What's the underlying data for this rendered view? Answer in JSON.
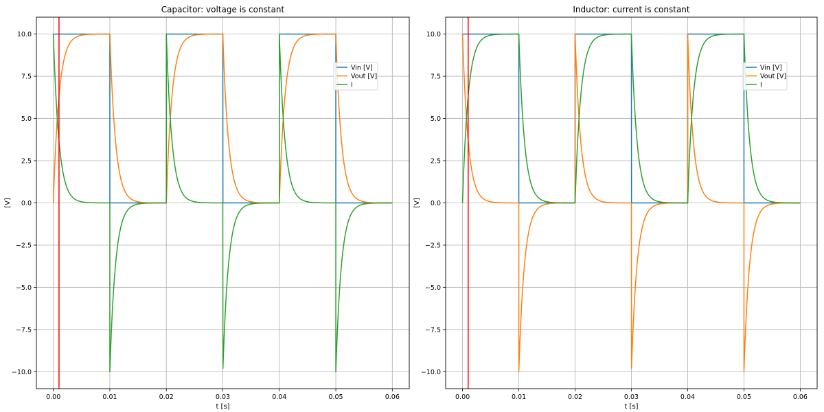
{
  "chart_data": [
    {
      "type": "line",
      "title": "Capacitor: voltage is constant",
      "xlabel": "t [s]",
      "ylabel": "[V]",
      "xlim": [
        -0.003,
        0.063
      ],
      "ylim": [
        -11,
        11
      ],
      "xticks": [
        "0.00",
        "0.01",
        "0.02",
        "0.03",
        "0.04",
        "0.05",
        "0.06"
      ],
      "yticks": [
        "10.0",
        "7.5",
        "5.0",
        "2.5",
        "0.0",
        "−2.5",
        "−5.0",
        "−7.5",
        "−10.0"
      ],
      "grid": true,
      "legend_position": "upper-right",
      "vline_t": 0.001,
      "signal": {
        "t_start": 0,
        "t_end": 0.06,
        "period": 0.02,
        "on_duration": 0.01,
        "amplitude": 10,
        "time_constant": 0.001,
        "num_pulses": 3
      },
      "series": [
        {
          "name": "Vin [V]",
          "kind": "vin",
          "color": "#1f77b4"
        },
        {
          "name": "Vout [V]",
          "kind": "vc",
          "color": "#ff7f0e"
        },
        {
          "name": "I",
          "kind": "vr",
          "color": "#2ca02c"
        }
      ]
    },
    {
      "type": "line",
      "title": "Inductor: current is constant",
      "xlabel": "t [s]",
      "ylabel": "[V]",
      "xlim": [
        -0.003,
        0.063
      ],
      "ylim": [
        -11,
        11
      ],
      "xticks": [
        "0.00",
        "0.01",
        "0.02",
        "0.03",
        "0.04",
        "0.05",
        "0.06"
      ],
      "yticks": [
        "10.0",
        "7.5",
        "5.0",
        "2.5",
        "0.0",
        "−2.5",
        "−5.0",
        "−7.5",
        "−10.0"
      ],
      "grid": true,
      "legend_position": "upper-right",
      "vline_t": 0.001,
      "signal": {
        "t_start": 0,
        "t_end": 0.06,
        "period": 0.02,
        "on_duration": 0.01,
        "amplitude": 10,
        "time_constant": 0.001,
        "num_pulses": 3
      },
      "series": [
        {
          "name": "Vin [V]",
          "kind": "vin",
          "color": "#1f77b4"
        },
        {
          "name": "Vout [V]",
          "kind": "vr",
          "color": "#ff7f0e"
        },
        {
          "name": "I",
          "kind": "vc",
          "color": "#2ca02c"
        }
      ]
    }
  ],
  "colors": {
    "grid": "#b0b0b0",
    "marker_line": "#ff0000",
    "axes": "#000000"
  }
}
